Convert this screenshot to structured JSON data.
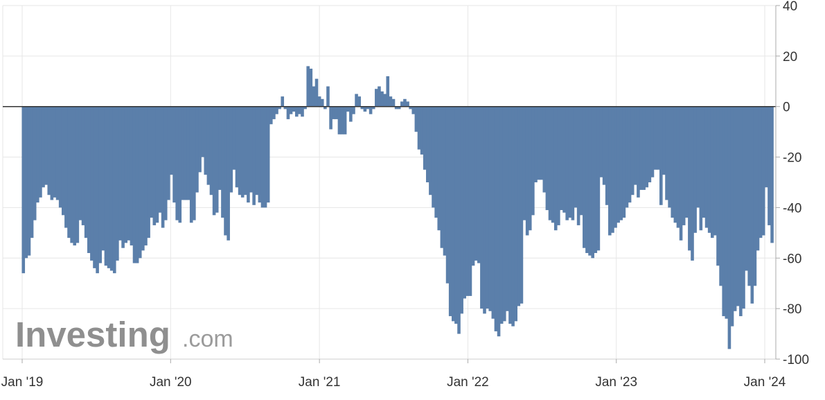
{
  "logo": {
    "brand": "Investing",
    "suffix": ".com"
  },
  "chart_data": {
    "type": "bar",
    "series": [
      {
        "color": "#5b7faa"
      }
    ],
    "ylim": [
      -100,
      40
    ],
    "yticks": [
      40,
      20,
      0,
      -20,
      -40,
      -60,
      -80,
      -100
    ],
    "xticks": [
      "Jan '19",
      "Jan '20",
      "Jan '21",
      "Jan '22",
      "Jan '23",
      "Jan '24"
    ],
    "grid": true,
    "points": [
      [
        "2019-01-04",
        -66
      ],
      [
        "2019-01-11",
        -60
      ],
      [
        "2019-01-18",
        -59
      ],
      [
        "2019-01-25",
        -52
      ],
      [
        "2019-02-01",
        -45
      ],
      [
        "2019-02-08",
        -38
      ],
      [
        "2019-02-15",
        -36
      ],
      [
        "2019-02-22",
        -32
      ],
      [
        "2019-03-01",
        -31
      ],
      [
        "2019-03-08",
        -35
      ],
      [
        "2019-03-15",
        -37
      ],
      [
        "2019-03-22",
        -36
      ],
      [
        "2019-03-29",
        -37
      ],
      [
        "2019-04-05",
        -40
      ],
      [
        "2019-04-12",
        -43
      ],
      [
        "2019-04-19",
        -48
      ],
      [
        "2019-04-26",
        -52
      ],
      [
        "2019-05-03",
        -54
      ],
      [
        "2019-05-10",
        -55
      ],
      [
        "2019-05-17",
        -54
      ],
      [
        "2019-05-24",
        -45
      ],
      [
        "2019-05-31",
        -47
      ],
      [
        "2019-06-07",
        -52
      ],
      [
        "2019-06-14",
        -58
      ],
      [
        "2019-06-21",
        -61
      ],
      [
        "2019-06-28",
        -64
      ],
      [
        "2019-07-05",
        -66
      ],
      [
        "2019-07-12",
        -62
      ],
      [
        "2019-07-19",
        -57
      ],
      [
        "2019-07-26",
        -63
      ],
      [
        "2019-08-02",
        -64
      ],
      [
        "2019-08-09",
        -65
      ],
      [
        "2019-08-16",
        -66
      ],
      [
        "2019-08-23",
        -61
      ],
      [
        "2019-08-30",
        -53
      ],
      [
        "2019-09-06",
        -56
      ],
      [
        "2019-09-13",
        -54
      ],
      [
        "2019-09-20",
        -53
      ],
      [
        "2019-09-27",
        -55
      ],
      [
        "2019-10-04",
        -62
      ],
      [
        "2019-10-11",
        -62
      ],
      [
        "2019-10-18",
        -60
      ],
      [
        "2019-10-25",
        -57
      ],
      [
        "2019-11-01",
        -55
      ],
      [
        "2019-11-08",
        -52
      ],
      [
        "2019-11-15",
        -44
      ],
      [
        "2019-11-22",
        -47
      ],
      [
        "2019-11-29",
        -46
      ],
      [
        "2019-12-06",
        -42
      ],
      [
        "2019-12-13",
        -48
      ],
      [
        "2019-12-20",
        -45
      ],
      [
        "2019-12-27",
        -37
      ],
      [
        "2020-01-03",
        -27
      ],
      [
        "2020-01-10",
        -38
      ],
      [
        "2020-01-17",
        -45
      ],
      [
        "2020-01-24",
        -46
      ],
      [
        "2020-01-31",
        -37
      ],
      [
        "2020-02-07",
        -37
      ],
      [
        "2020-02-14",
        -37
      ],
      [
        "2020-02-21",
        -46
      ],
      [
        "2020-02-28",
        -45
      ],
      [
        "2020-03-06",
        -34
      ],
      [
        "2020-03-13",
        -26
      ],
      [
        "2020-03-20",
        -20
      ],
      [
        "2020-03-27",
        -27
      ],
      [
        "2020-04-03",
        -31
      ],
      [
        "2020-04-10",
        -35
      ],
      [
        "2020-04-17",
        -43
      ],
      [
        "2020-04-24",
        -42
      ],
      [
        "2020-05-01",
        -33
      ],
      [
        "2020-05-08",
        -44
      ],
      [
        "2020-05-15",
        -51
      ],
      [
        "2020-05-22",
        -53
      ],
      [
        "2020-05-29",
        -34
      ],
      [
        "2020-06-05",
        -25
      ],
      [
        "2020-06-12",
        -32
      ],
      [
        "2020-06-19",
        -35
      ],
      [
        "2020-06-26",
        -36
      ],
      [
        "2020-07-03",
        -35
      ],
      [
        "2020-07-10",
        -38
      ],
      [
        "2020-07-17",
        -34
      ],
      [
        "2020-07-24",
        -39
      ],
      [
        "2020-07-31",
        -35
      ],
      [
        "2020-08-07",
        -38
      ],
      [
        "2020-08-14",
        -40
      ],
      [
        "2020-08-21",
        -40
      ],
      [
        "2020-08-28",
        -38
      ],
      [
        "2020-09-04",
        -7
      ],
      [
        "2020-09-11",
        -5
      ],
      [
        "2020-09-18",
        -3
      ],
      [
        "2020-09-25",
        -1
      ],
      [
        "2020-10-02",
        4
      ],
      [
        "2020-10-09",
        -1
      ],
      [
        "2020-10-16",
        -5
      ],
      [
        "2020-10-23",
        -3
      ],
      [
        "2020-10-30",
        -2
      ],
      [
        "2020-11-06",
        -4
      ],
      [
        "2020-11-13",
        -3
      ],
      [
        "2020-11-20",
        -4
      ],
      [
        "2020-11-27",
        -1
      ],
      [
        "2020-12-04",
        16
      ],
      [
        "2020-12-11",
        15
      ],
      [
        "2020-12-18",
        8
      ],
      [
        "2020-12-25",
        11
      ],
      [
        "2021-01-01",
        4
      ],
      [
        "2021-01-08",
        3
      ],
      [
        "2021-01-15",
        -1
      ],
      [
        "2021-01-22",
        8
      ],
      [
        "2021-01-29",
        -9
      ],
      [
        "2021-02-05",
        -5
      ],
      [
        "2021-02-12",
        -5
      ],
      [
        "2021-02-19",
        -11
      ],
      [
        "2021-02-26",
        -11
      ],
      [
        "2021-03-05",
        -11
      ],
      [
        "2021-03-12",
        -2
      ],
      [
        "2021-03-19",
        -6
      ],
      [
        "2021-03-26",
        -3
      ],
      [
        "2021-04-02",
        5
      ],
      [
        "2021-04-09",
        4
      ],
      [
        "2021-04-16",
        -1
      ],
      [
        "2021-04-23",
        -2
      ],
      [
        "2021-04-30",
        -1
      ],
      [
        "2021-05-07",
        -3
      ],
      [
        "2021-05-14",
        -1
      ],
      [
        "2021-05-21",
        7
      ],
      [
        "2021-05-28",
        8
      ],
      [
        "2021-06-04",
        6
      ],
      [
        "2021-06-11",
        5
      ],
      [
        "2021-06-18",
        12
      ],
      [
        "2021-06-25",
        4
      ],
      [
        "2021-07-02",
        3
      ],
      [
        "2021-07-09",
        -1
      ],
      [
        "2021-07-16",
        -1
      ],
      [
        "2021-07-23",
        2
      ],
      [
        "2021-07-30",
        3
      ],
      [
        "2021-08-06",
        2
      ],
      [
        "2021-08-13",
        -1
      ],
      [
        "2021-08-20",
        -3
      ],
      [
        "2021-08-27",
        -10
      ],
      [
        "2021-09-03",
        -17
      ],
      [
        "2021-09-10",
        -19
      ],
      [
        "2021-09-17",
        -25
      ],
      [
        "2021-09-24",
        -30
      ],
      [
        "2021-10-01",
        -35
      ],
      [
        "2021-10-08",
        -40
      ],
      [
        "2021-10-15",
        -44
      ],
      [
        "2021-10-22",
        -49
      ],
      [
        "2021-10-29",
        -56
      ],
      [
        "2021-11-05",
        -59
      ],
      [
        "2021-11-12",
        -70
      ],
      [
        "2021-11-19",
        -83
      ],
      [
        "2021-11-26",
        -85
      ],
      [
        "2021-12-03",
        -86
      ],
      [
        "2021-12-10",
        -90
      ],
      [
        "2021-12-17",
        -82
      ],
      [
        "2021-12-24",
        -76
      ],
      [
        "2021-12-31",
        -75
      ],
      [
        "2022-01-07",
        -75
      ],
      [
        "2022-01-14",
        -63
      ],
      [
        "2022-01-21",
        -61
      ],
      [
        "2022-01-28",
        -62
      ],
      [
        "2022-02-04",
        -80
      ],
      [
        "2022-02-11",
        -82
      ],
      [
        "2022-02-18",
        -80
      ],
      [
        "2022-02-25",
        -81
      ],
      [
        "2022-03-04",
        -84
      ],
      [
        "2022-03-11",
        -89
      ],
      [
        "2022-03-18",
        -91
      ],
      [
        "2022-03-25",
        -86
      ],
      [
        "2022-04-01",
        -85
      ],
      [
        "2022-04-08",
        -81
      ],
      [
        "2022-04-15",
        -86
      ],
      [
        "2022-04-22",
        -87
      ],
      [
        "2022-04-29",
        -85
      ],
      [
        "2022-05-06",
        -79
      ],
      [
        "2022-05-13",
        -78
      ],
      [
        "2022-05-20",
        -45
      ],
      [
        "2022-05-27",
        -51
      ],
      [
        "2022-06-03",
        -49
      ],
      [
        "2022-06-10",
        -43
      ],
      [
        "2022-06-17",
        -30
      ],
      [
        "2022-06-24",
        -29
      ],
      [
        "2022-07-01",
        -29
      ],
      [
        "2022-07-08",
        -34
      ],
      [
        "2022-07-15",
        -41
      ],
      [
        "2022-07-22",
        -45
      ],
      [
        "2022-07-29",
        -46
      ],
      [
        "2022-08-05",
        -49
      ],
      [
        "2022-08-12",
        -47
      ],
      [
        "2022-08-19",
        -41
      ],
      [
        "2022-08-26",
        -42
      ],
      [
        "2022-09-02",
        -45
      ],
      [
        "2022-09-09",
        -44
      ],
      [
        "2022-09-16",
        -45
      ],
      [
        "2022-09-23",
        -40
      ],
      [
        "2022-09-30",
        -47
      ],
      [
        "2022-10-07",
        -43
      ],
      [
        "2022-10-14",
        -56
      ],
      [
        "2022-10-21",
        -58
      ],
      [
        "2022-10-28",
        -59
      ],
      [
        "2022-11-04",
        -60
      ],
      [
        "2022-11-11",
        -58
      ],
      [
        "2022-11-18",
        -57
      ],
      [
        "2022-11-25",
        -28
      ],
      [
        "2022-12-02",
        -31
      ],
      [
        "2022-12-09",
        -39
      ],
      [
        "2022-12-16",
        -51
      ],
      [
        "2022-12-23",
        -50
      ],
      [
        "2022-12-30",
        -48
      ],
      [
        "2023-01-06",
        -46
      ],
      [
        "2023-01-13",
        -45
      ],
      [
        "2023-01-20",
        -44
      ],
      [
        "2023-01-27",
        -40
      ],
      [
        "2023-02-03",
        -38
      ],
      [
        "2023-02-10",
        -35
      ],
      [
        "2023-02-17",
        -31
      ],
      [
        "2023-02-24",
        -36
      ],
      [
        "2023-03-03",
        -33
      ],
      [
        "2023-03-10",
        -33
      ],
      [
        "2023-03-17",
        -32
      ],
      [
        "2023-03-24",
        -30
      ],
      [
        "2023-03-31",
        -28
      ],
      [
        "2023-04-07",
        -25
      ],
      [
        "2023-04-14",
        -25
      ],
      [
        "2023-04-21",
        -39
      ],
      [
        "2023-04-28",
        -27
      ],
      [
        "2023-05-05",
        -37
      ],
      [
        "2023-05-12",
        -40
      ],
      [
        "2023-05-19",
        -44
      ],
      [
        "2023-05-26",
        -46
      ],
      [
        "2023-06-02",
        -48
      ],
      [
        "2023-06-09",
        -53
      ],
      [
        "2023-06-16",
        -47
      ],
      [
        "2023-06-23",
        -44
      ],
      [
        "2023-06-30",
        -57
      ],
      [
        "2023-07-07",
        -61
      ],
      [
        "2023-07-14",
        -50
      ],
      [
        "2023-07-21",
        -40
      ],
      [
        "2023-07-28",
        -49
      ],
      [
        "2023-08-04",
        -44
      ],
      [
        "2023-08-11",
        -48
      ],
      [
        "2023-08-18",
        -50
      ],
      [
        "2023-08-25",
        -52
      ],
      [
        "2023-09-01",
        -51
      ],
      [
        "2023-09-08",
        -63
      ],
      [
        "2023-09-15",
        -71
      ],
      [
        "2023-09-22",
        -83
      ],
      [
        "2023-09-29",
        -84
      ],
      [
        "2023-10-06",
        -96
      ],
      [
        "2023-10-13",
        -87
      ],
      [
        "2023-10-20",
        -81
      ],
      [
        "2023-10-27",
        -79
      ],
      [
        "2023-11-03",
        -83
      ],
      [
        "2023-11-10",
        -80
      ],
      [
        "2023-11-17",
        -65
      ],
      [
        "2023-11-24",
        -71
      ],
      [
        "2023-12-01",
        -78
      ],
      [
        "2023-12-08",
        -71
      ],
      [
        "2023-12-15",
        -57
      ],
      [
        "2023-12-22",
        -52
      ],
      [
        "2023-12-29",
        -51
      ],
      [
        "2024-01-05",
        -32
      ],
      [
        "2024-01-12",
        -47
      ],
      [
        "2024-01-19",
        -54
      ]
    ]
  }
}
